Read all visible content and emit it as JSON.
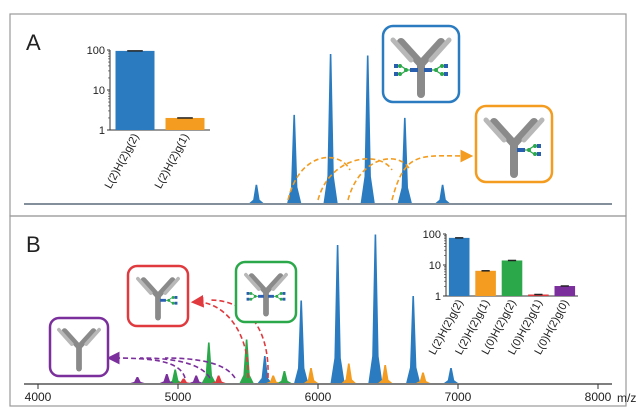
{
  "colors": {
    "blue": "#2a7bc0",
    "orange": "#f39c1f",
    "green": "#2aa84a",
    "red": "#e0393e",
    "purple": "#7b2f9c",
    "frame": "#9a9a9a",
    "antibody": "#8a8a8a",
    "arrow_orange": "#f39c1f",
    "arrow_red": "#e0393e",
    "arrow_purple": "#7b2f9c"
  },
  "panels": [
    {
      "label": "A"
    },
    {
      "label": "B"
    }
  ],
  "chart_data": [
    {
      "id": "panelA-inset",
      "type": "bar",
      "yscale": "log",
      "ylim": [
        1,
        100
      ],
      "ytick_labels": [
        "1",
        "10",
        "100"
      ],
      "categories": [
        "L(2)H(2)g(2)",
        "L(2)H(2)g(1)"
      ],
      "values": [
        95,
        2
      ],
      "colors": [
        "#2a7bc0",
        "#f39c1f"
      ]
    },
    {
      "id": "panelB-inset",
      "type": "bar",
      "yscale": "log",
      "ylim": [
        1,
        100
      ],
      "ytick_labels": [
        "1",
        "10",
        "100"
      ],
      "categories": [
        "L(2)H(2)g(2)",
        "L(2)H(2)g(1)",
        "L(0)H(2)g(2)",
        "L(0)H(2)g(1)",
        "L(0)H(2)g(0)"
      ],
      "values": [
        75,
        6.5,
        14,
        1.05,
        2.1
      ],
      "colors": [
        "#2a7bc0",
        "#f39c1f",
        "#2aa84a",
        "#e0393e",
        "#7b2f9c"
      ]
    },
    {
      "id": "panelA-spectrum",
      "type": "line",
      "xlim": [
        4000,
        8200
      ],
      "ylim": [
        0,
        1
      ],
      "series": [
        {
          "color": "#2a7bc0",
          "peaks": [
            {
              "x": 5660,
              "y": 0.12
            },
            {
              "x": 5930,
              "y": 0.58
            },
            {
              "x": 6190,
              "y": 0.98
            },
            {
              "x": 6455,
              "y": 0.97
            },
            {
              "x": 6720,
              "y": 0.56
            },
            {
              "x": 6990,
              "y": 0.12
            }
          ]
        }
      ]
    },
    {
      "id": "panelB-spectrum",
      "type": "line",
      "xlim": [
        4000,
        8200
      ],
      "ylim": [
        0,
        1
      ],
      "xtick_values": [
        4000,
        5000,
        6000,
        7000,
        8000
      ],
      "xtick_labels": [
        "4000",
        "5000",
        "6000",
        "7000",
        "8000"
      ],
      "xlabel": "m/z",
      "series": [
        {
          "color": "#2a7bc0",
          "peaks": [
            {
              "x": 5720,
              "y": 0.18
            },
            {
              "x": 5980,
              "y": 0.55
            },
            {
              "x": 6240,
              "y": 0.92
            },
            {
              "x": 6510,
              "y": 0.99
            },
            {
              "x": 6780,
              "y": 0.58
            },
            {
              "x": 7050,
              "y": 0.1
            }
          ]
        },
        {
          "color": "#f39c1f",
          "peaks": [
            {
              "x": 5780,
              "y": 0.05
            },
            {
              "x": 6050,
              "y": 0.1
            },
            {
              "x": 6320,
              "y": 0.13
            },
            {
              "x": 6580,
              "y": 0.12
            },
            {
              "x": 6850,
              "y": 0.07
            }
          ]
        },
        {
          "color": "#2aa84a",
          "peaks": [
            {
              "x": 5080,
              "y": 0.09
            },
            {
              "x": 5320,
              "y": 0.27
            },
            {
              "x": 5590,
              "y": 0.29
            },
            {
              "x": 5860,
              "y": 0.08
            }
          ]
        },
        {
          "color": "#e0393e",
          "peaks": [
            {
              "x": 5140,
              "y": 0.03
            },
            {
              "x": 5390,
              "y": 0.05
            }
          ]
        },
        {
          "color": "#7b2f9c",
          "peaks": [
            {
              "x": 4810,
              "y": 0.04
            },
            {
              "x": 5020,
              "y": 0.06
            },
            {
              "x": 5230,
              "y": 0.05
            }
          ]
        }
      ]
    }
  ]
}
